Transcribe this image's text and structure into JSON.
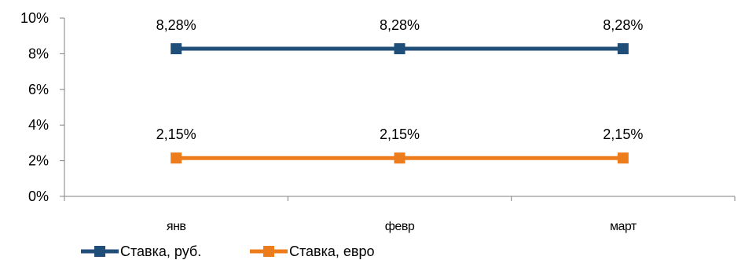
{
  "chart_data": {
    "type": "line",
    "categories": [
      "янв",
      "февр",
      "март"
    ],
    "series": [
      {
        "name": "Ставка, руб.",
        "values": [
          8.28,
          8.28,
          8.28
        ],
        "labels": [
          "8,28%",
          "8,28%",
          "8,28%"
        ],
        "color": "#1F4E79"
      },
      {
        "name": "Ставка, евро",
        "values": [
          2.15,
          2.15,
          2.15
        ],
        "labels": [
          "2,15%",
          "2,15%",
          "2,15%"
        ],
        "color": "#ED7D1C"
      }
    ],
    "ylim": [
      0,
      10
    ],
    "y_ticks": [
      {
        "value": 0,
        "label": "0%"
      },
      {
        "value": 2,
        "label": "2%"
      },
      {
        "value": 4,
        "label": "4%"
      },
      {
        "value": 6,
        "label": "6%"
      },
      {
        "value": 8,
        "label": "8%"
      },
      {
        "value": 10,
        "label": "10%"
      }
    ],
    "grid": false,
    "legend_position": "bottom-left",
    "axis_color": "#808080"
  }
}
